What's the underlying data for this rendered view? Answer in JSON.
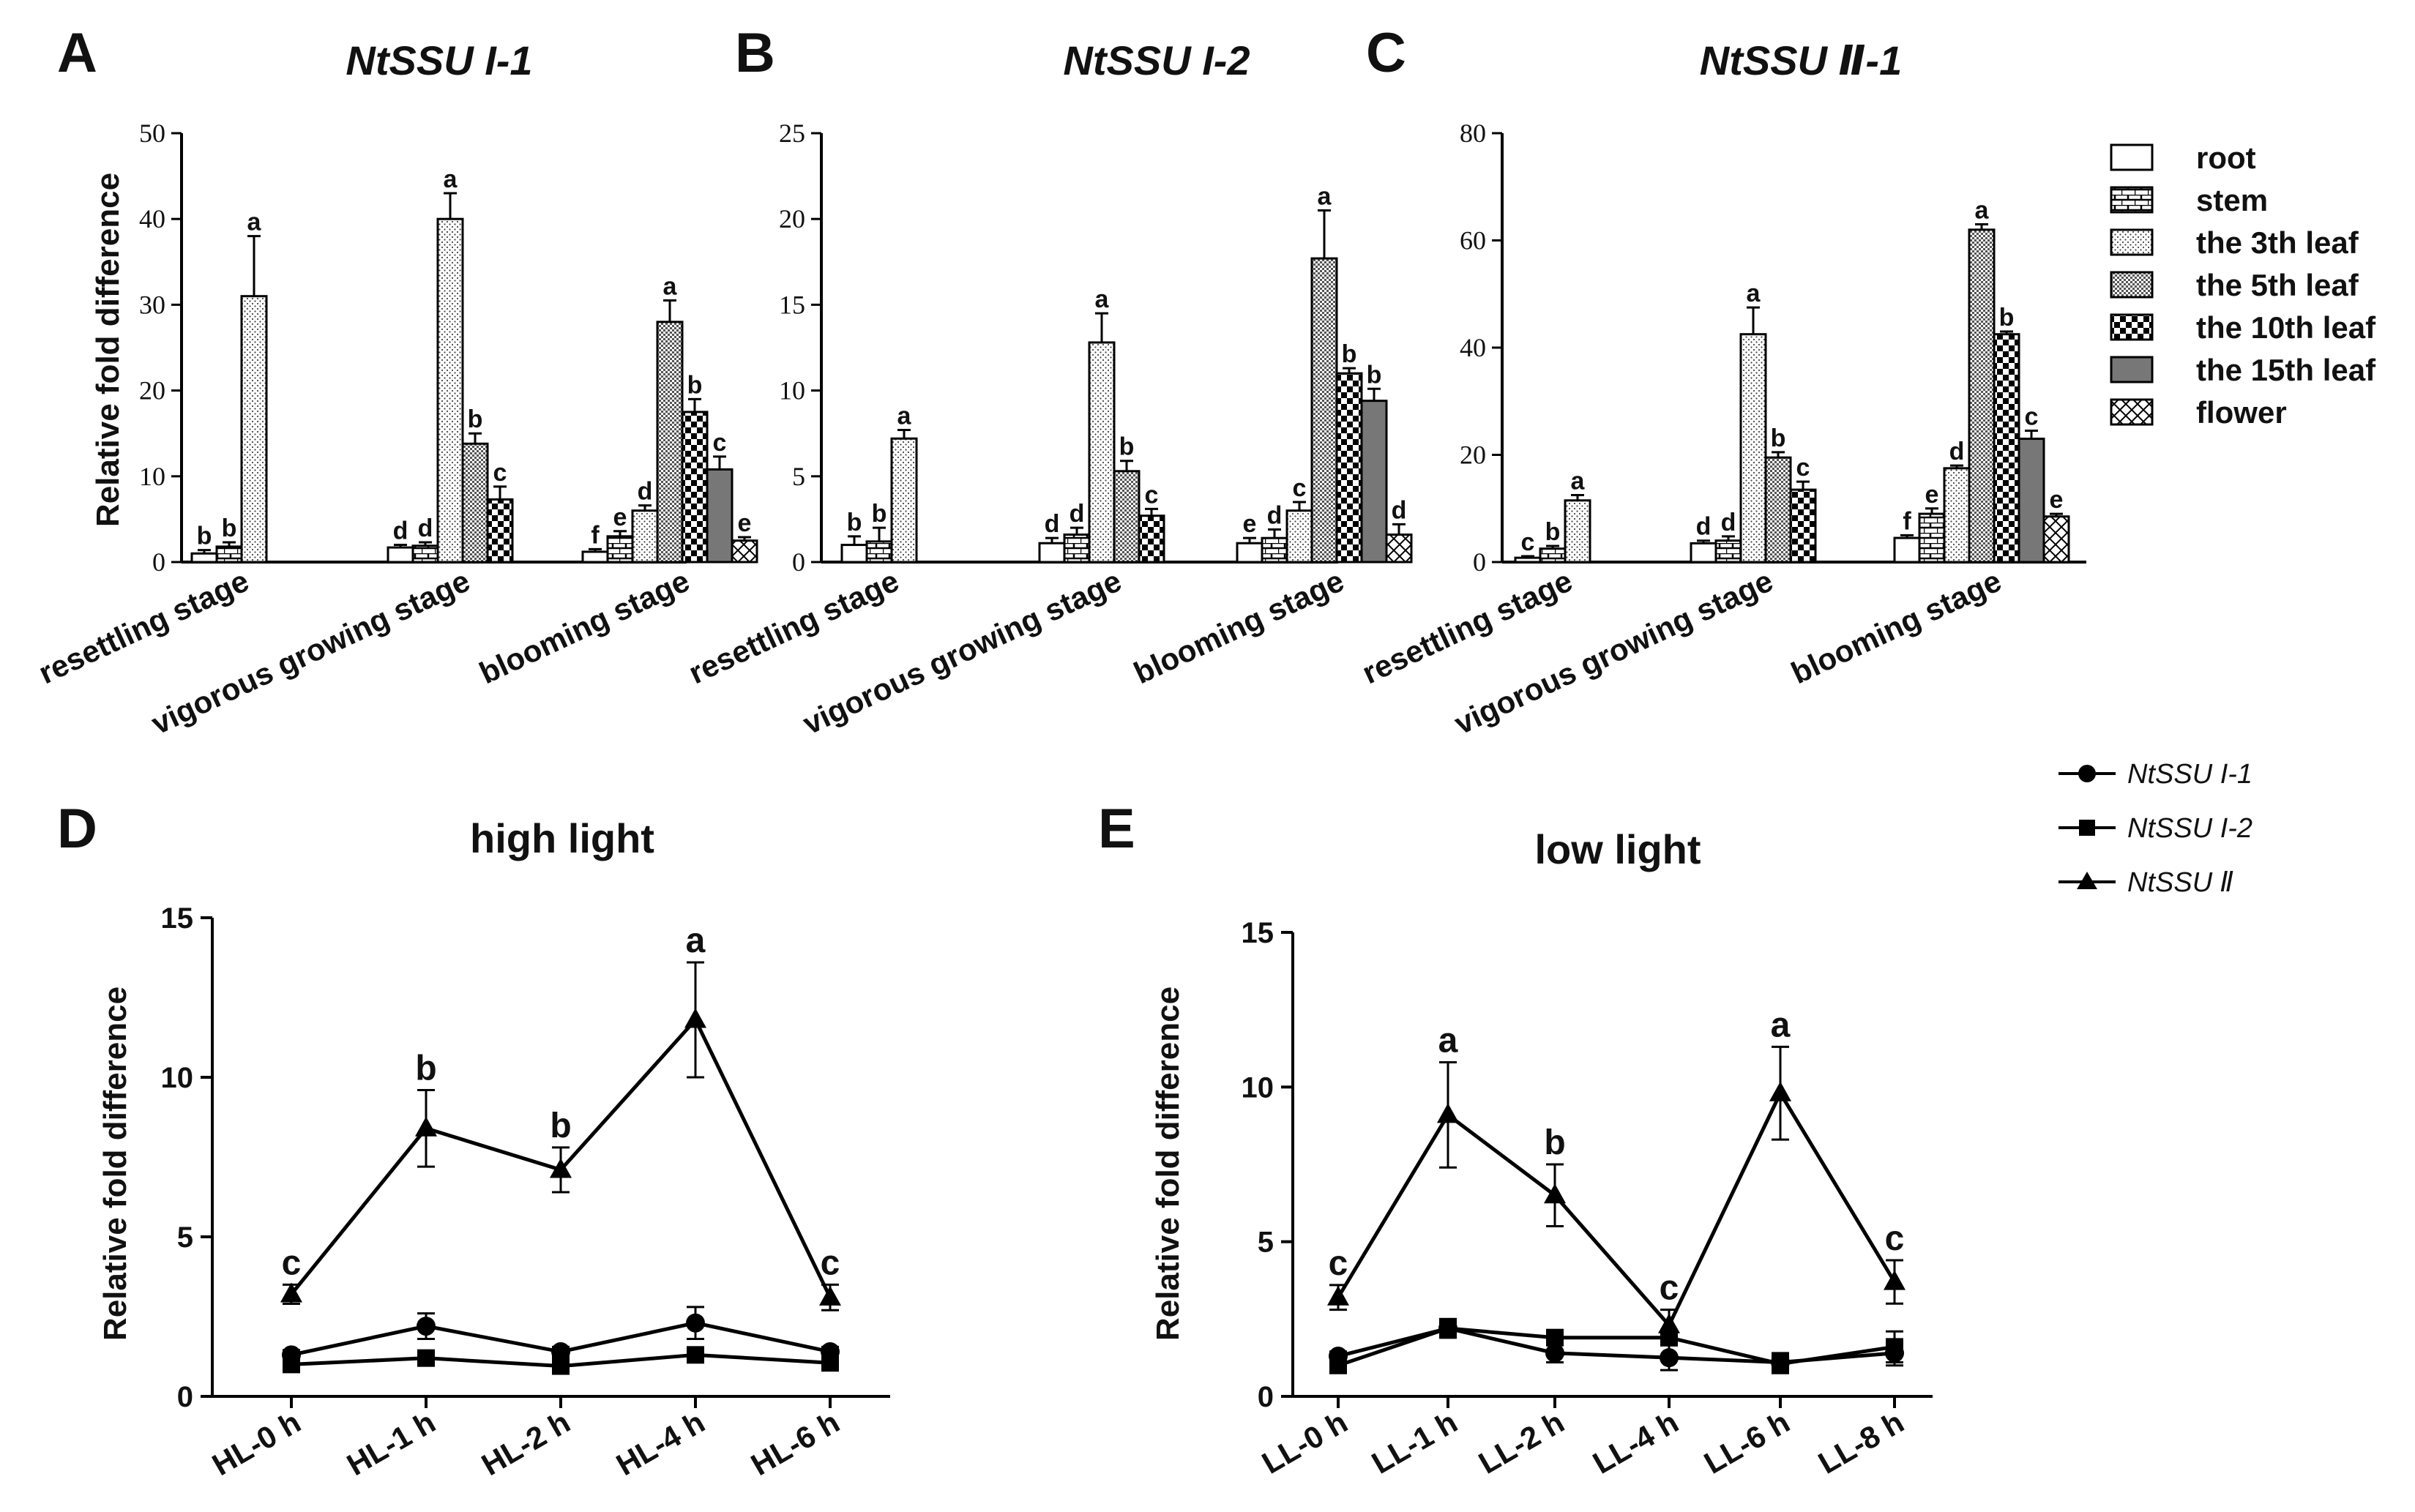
{
  "chart_data": [
    {
      "panel": "A",
      "type": "bar",
      "title": "NtSSU I-1",
      "ylabel": "Relative fold difference",
      "ylim": [
        0,
        50
      ],
      "yticks": [
        "0",
        "10",
        "20",
        "30",
        "40",
        "50"
      ],
      "categories": [
        "resettling stage",
        "vigorous growing stage",
        "blooming stage"
      ],
      "groups": [
        {
          "bars": [
            {
              "tissue": "root",
              "value": 1,
              "err": 0.4,
              "sig": "b"
            },
            {
              "tissue": "stem",
              "value": 1.8,
              "err": 0.5,
              "sig": "b"
            },
            {
              "tissue": "the 3th leaf",
              "value": 31,
              "err": 7,
              "sig": "a"
            }
          ]
        },
        {
          "bars": [
            {
              "tissue": "root",
              "value": 1.7,
              "err": 0.3,
              "sig": "d"
            },
            {
              "tissue": "stem",
              "value": 1.9,
              "err": 0.4,
              "sig": "d"
            },
            {
              "tissue": "the 3th leaf",
              "value": 40,
              "err": 3,
              "sig": "a"
            },
            {
              "tissue": "the 5th leaf",
              "value": 13.8,
              "err": 1.2,
              "sig": "b"
            },
            {
              "tissue": "the 10th leaf",
              "value": 7.3,
              "err": 1.5,
              "sig": "c"
            }
          ]
        },
        {
          "bars": [
            {
              "tissue": "root",
              "value": 1.2,
              "err": 0.3,
              "sig": "f"
            },
            {
              "tissue": "stem",
              "value": 3,
              "err": 0.6,
              "sig": "e"
            },
            {
              "tissue": "the 3th leaf",
              "value": 6,
              "err": 0.6,
              "sig": "d"
            },
            {
              "tissue": "the 5th leaf",
              "value": 28,
              "err": 2.5,
              "sig": "a"
            },
            {
              "tissue": "the 10th leaf",
              "value": 17.5,
              "err": 1.5,
              "sig": "b"
            },
            {
              "tissue": "the 15th leaf",
              "value": 10.8,
              "err": 1.5,
              "sig": "c"
            },
            {
              "tissue": "flower",
              "value": 2.5,
              "err": 0.4,
              "sig": "e"
            }
          ]
        }
      ]
    },
    {
      "panel": "B",
      "type": "bar",
      "title": "NtSSU I-2",
      "ylim": [
        0,
        25
      ],
      "yticks": [
        "0",
        "5",
        "10",
        "15",
        "20",
        "25"
      ],
      "categories": [
        "resettling stage",
        "vigorous growing stage",
        "blooming stage"
      ],
      "groups": [
        {
          "bars": [
            {
              "tissue": "root",
              "value": 1,
              "err": 0.5,
              "sig": "b"
            },
            {
              "tissue": "stem",
              "value": 1.2,
              "err": 0.8,
              "sig": "b"
            },
            {
              "tissue": "the 3th leaf",
              "value": 7.2,
              "err": 0.5,
              "sig": "a"
            }
          ]
        },
        {
          "bars": [
            {
              "tissue": "root",
              "value": 1.1,
              "err": 0.3,
              "sig": "d"
            },
            {
              "tissue": "stem",
              "value": 1.6,
              "err": 0.4,
              "sig": "d"
            },
            {
              "tissue": "the 3th leaf",
              "value": 12.8,
              "err": 1.7,
              "sig": "a"
            },
            {
              "tissue": "the 5th leaf",
              "value": 5.3,
              "err": 0.6,
              "sig": "b"
            },
            {
              "tissue": "the 10th leaf",
              "value": 2.7,
              "err": 0.4,
              "sig": "c"
            }
          ]
        },
        {
          "bars": [
            {
              "tissue": "root",
              "value": 1.1,
              "err": 0.3,
              "sig": "e"
            },
            {
              "tissue": "stem",
              "value": 1.4,
              "err": 0.5,
              "sig": "d"
            },
            {
              "tissue": "the 3th leaf",
              "value": 3,
              "err": 0.5,
              "sig": "c"
            },
            {
              "tissue": "the 5th leaf",
              "value": 17.7,
              "err": 2.8,
              "sig": "a"
            },
            {
              "tissue": "the 10th leaf",
              "value": 11,
              "err": 0.3,
              "sig": "b"
            },
            {
              "tissue": "the 15th leaf",
              "value": 9.4,
              "err": 0.7,
              "sig": "b"
            },
            {
              "tissue": "flower",
              "value": 1.6,
              "err": 0.6,
              "sig": "d"
            }
          ]
        }
      ]
    },
    {
      "panel": "C",
      "type": "bar",
      "title": "NtSSU Ⅱ-1",
      "ylim": [
        0,
        80
      ],
      "yticks": [
        "0",
        "20",
        "40",
        "60",
        "80"
      ],
      "categories": [
        "resettling stage",
        "vigorous growing stage",
        "blooming stage"
      ],
      "groups": [
        {
          "bars": [
            {
              "tissue": "root",
              "value": 0.8,
              "err": 0.3,
              "sig": "c"
            },
            {
              "tissue": "stem",
              "value": 2.5,
              "err": 0.5,
              "sig": "b"
            },
            {
              "tissue": "the 3th leaf",
              "value": 11.5,
              "err": 1,
              "sig": "a"
            }
          ]
        },
        {
          "bars": [
            {
              "tissue": "root",
              "value": 3.5,
              "err": 0.5,
              "sig": "d"
            },
            {
              "tissue": "stem",
              "value": 4,
              "err": 0.8,
              "sig": "d"
            },
            {
              "tissue": "the 3th leaf",
              "value": 42.5,
              "err": 5,
              "sig": "a"
            },
            {
              "tissue": "the 5th leaf",
              "value": 19.5,
              "err": 1,
              "sig": "b"
            },
            {
              "tissue": "the 10th leaf",
              "value": 13.5,
              "err": 1.5,
              "sig": "c"
            }
          ]
        },
        {
          "bars": [
            {
              "tissue": "root",
              "value": 4.5,
              "err": 0.5,
              "sig": "f"
            },
            {
              "tissue": "stem",
              "value": 9,
              "err": 1,
              "sig": "e"
            },
            {
              "tissue": "the 3th leaf",
              "value": 17.5,
              "err": 0.5,
              "sig": "d"
            },
            {
              "tissue": "the 5th leaf",
              "value": 62,
              "err": 1,
              "sig": "a"
            },
            {
              "tissue": "the 10th leaf",
              "value": 42.5,
              "err": 0.5,
              "sig": "b"
            },
            {
              "tissue": "the 15th leaf",
              "value": 23,
              "err": 1.5,
              "sig": "c"
            },
            {
              "tissue": "flower",
              "value": 8.5,
              "err": 0.5,
              "sig": "e"
            }
          ]
        }
      ]
    },
    {
      "panel": "D",
      "type": "line",
      "title": "high light",
      "ylabel": "Relative fold difference",
      "ylim": [
        0,
        15
      ],
      "yticks": [
        "0",
        "5",
        "10",
        "15"
      ],
      "x": [
        "HL-0 h",
        "HL-1 h",
        "HL-2 h",
        "HL-4 h",
        "HL-6 h"
      ],
      "series": [
        {
          "name": "NtSSU I-1",
          "marker": "circle",
          "values": [
            1.3,
            2.2,
            1.4,
            2.3,
            1.4
          ],
          "err": [
            0.15,
            0.4,
            0.15,
            0.5,
            0.15
          ]
        },
        {
          "name": "NtSSU I-2",
          "marker": "square",
          "values": [
            1.0,
            1.2,
            0.95,
            1.3,
            1.05
          ],
          "err": [
            0.1,
            0.1,
            0.1,
            0.15,
            0.1
          ]
        },
        {
          "name": "NtSSU Ⅱ",
          "marker": "triangle",
          "values": [
            3.2,
            8.4,
            7.1,
            11.8,
            3.1
          ],
          "err": [
            0.3,
            1.2,
            0.7,
            1.8,
            0.4
          ],
          "sig": [
            "c",
            "b",
            "b",
            "a",
            "c"
          ]
        }
      ]
    },
    {
      "panel": "E",
      "type": "line",
      "title": "low light",
      "ylabel": "Relative fold difference",
      "ylim": [
        0,
        15
      ],
      "yticks": [
        "0",
        "5",
        "10",
        "15"
      ],
      "x": [
        "LL-0 h",
        "LL-1 h",
        "LL-2 h",
        "LL-4 h",
        "LL-6 h",
        "LL-8 h"
      ],
      "series": [
        {
          "name": "NtSSU I-1",
          "marker": "circle",
          "values": [
            1.3,
            2.2,
            1.4,
            1.25,
            1.1,
            1.4
          ],
          "err": [
            0.15,
            0.3,
            0.3,
            0.4,
            0.3,
            0.4
          ]
        },
        {
          "name": "NtSSU I-2",
          "marker": "square",
          "values": [
            1.0,
            2.2,
            1.9,
            1.9,
            1.05,
            1.6
          ],
          "err": [
            0.1,
            0.3,
            0.2,
            0.2,
            0.3,
            0.5
          ]
        },
        {
          "name": "NtSSU Ⅱ",
          "marker": "triangle",
          "values": [
            3.2,
            9.1,
            6.5,
            2.3,
            9.8,
            3.7
          ],
          "err": [
            0.4,
            1.7,
            1.0,
            0.5,
            1.5,
            0.7
          ],
          "sig": [
            "c",
            "a",
            "b",
            "c",
            "a",
            "c"
          ]
        }
      ]
    }
  ],
  "panel_letters": [
    "A",
    "B",
    "C",
    "D",
    "E"
  ],
  "legend_tissues": [
    "root",
    "stem",
    "the 3th leaf",
    "the 5th leaf",
    "the 10th leaf",
    "the 15th leaf",
    "flower"
  ],
  "legend_series": [
    "NtSSU I-1",
    "NtSSU I-2",
    "NtSSU Ⅱ"
  ]
}
